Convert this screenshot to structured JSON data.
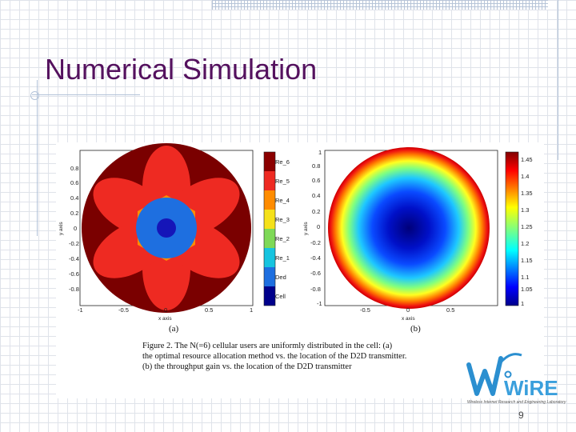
{
  "slide": {
    "title": "Numerical Simulation",
    "page_number": "9"
  },
  "figure": {
    "panel_a": {
      "label": "(a)",
      "xlabel": "x axis",
      "ylabel": "y axis",
      "xticks": [
        "-1",
        "-0.5",
        "0",
        "0.5",
        "1"
      ],
      "yticks": [
        "0.8",
        "0.6",
        "0.4",
        "0.2",
        "0",
        "-0.2",
        "-0.4",
        "-0.6",
        "-0.8"
      ],
      "legend": [
        "Re_6",
        "Re_5",
        "Re_4",
        "Re_3",
        "Re_2",
        "Re_1",
        "Ded",
        "Cell"
      ],
      "legend_colors": [
        "#8b0000",
        "#ee2a22",
        "#ff8c00",
        "#f5e11a",
        "#7ed957",
        "#16c4e0",
        "#1e6fe0",
        "#00008b"
      ]
    },
    "panel_b": {
      "label": "(b)",
      "ylabel": "y axis",
      "xlabel": "x axis",
      "yticks": [
        "1",
        "0.8",
        "0.6",
        "0.4",
        "0.2",
        "0",
        "-0.2",
        "-0.4",
        "-0.6",
        "-0.8",
        "-1"
      ],
      "xticks": [
        "-0.5",
        "0",
        "0.5"
      ],
      "colorbar_ticks": [
        "1.45",
        "1.4",
        "1.35",
        "1.3",
        "1.25",
        "1.2",
        "1.15",
        "1.1",
        "1.05",
        "1"
      ]
    },
    "caption_lines": [
      "Figure 2.   The N(=6) cellular users are uniformly distributed in the cell: (a)",
      "the optimal resource allocation method vs. the location of the D2D transmitter.",
      "(b) the throughput gain vs. the location of the D2D transmitter"
    ]
  },
  "logo": {
    "text": "WiRE",
    "subtitle": "Wireless Internet Research and Engineering Laboratory"
  }
}
